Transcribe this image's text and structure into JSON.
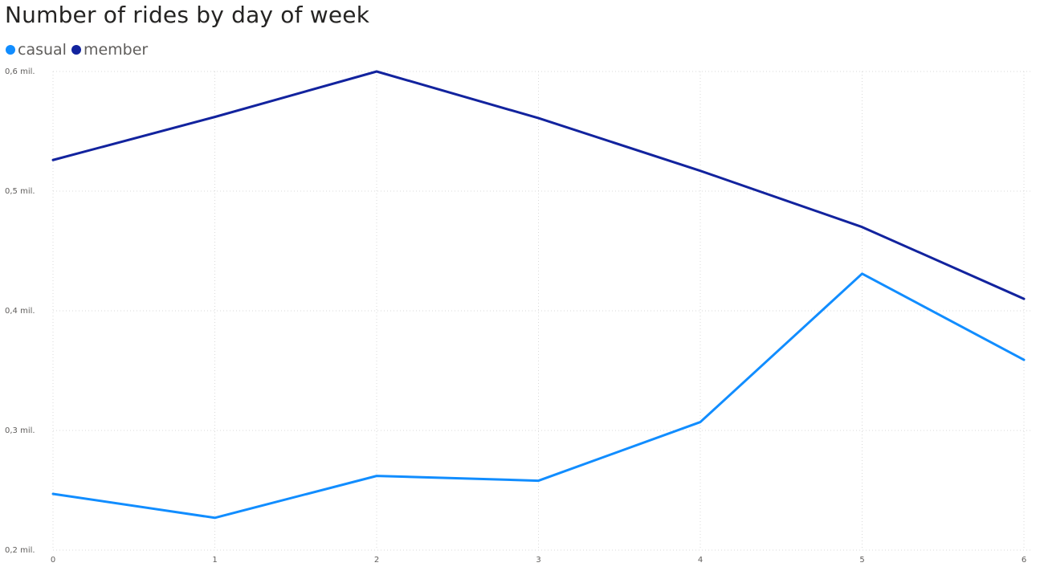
{
  "chart_data": {
    "type": "line",
    "title": "Number of rides by day of week",
    "xlabel": "",
    "ylabel": "",
    "x": [
      0,
      1,
      2,
      3,
      4,
      5,
      6
    ],
    "x_tick_labels": [
      "0",
      "1",
      "2",
      "3",
      "4",
      "5",
      "6"
    ],
    "ylim": [
      200000,
      600000
    ],
    "y_ticks": [
      200000,
      300000,
      400000,
      500000,
      600000
    ],
    "y_tick_labels": [
      "0,2 mil.",
      "0,3 mil.",
      "0,4 mil.",
      "0,5 mil.",
      "0,6 mil."
    ],
    "grid": true,
    "legend_position": "top-left",
    "series": [
      {
        "name": "casual",
        "color": "#118dff",
        "values": [
          247000,
          227000,
          262000,
          258000,
          307000,
          431000,
          359000
        ]
      },
      {
        "name": "member",
        "color": "#12239e",
        "values": [
          526000,
          562000,
          600000,
          561000,
          517000,
          470000,
          410000
        ]
      }
    ]
  }
}
